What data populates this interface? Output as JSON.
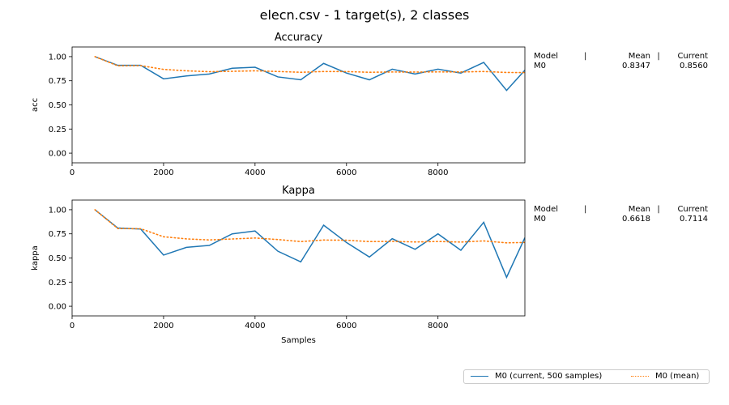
{
  "title": "elecn.csv - 1 target(s), 2 classes",
  "colors": {
    "current": "#1f77b4",
    "mean": "#ff7f0e",
    "axis": "#000000"
  },
  "legend": {
    "current_label": "M0  (current, 500 samples)",
    "mean_label": "M0 (mean)"
  },
  "chart_data": [
    {
      "type": "line",
      "title": "Accuracy",
      "xlabel": "",
      "ylabel": "acc",
      "xlim": [
        0,
        9900
      ],
      "ylim": [
        -0.1,
        1.1
      ],
      "x_ticks": [
        "0",
        "2000",
        "4000",
        "6000",
        "8000"
      ],
      "y_ticks": [
        "0.00",
        "0.25",
        "0.50",
        "0.75",
        "1.00"
      ],
      "x": [
        500,
        1000,
        1500,
        2000,
        2500,
        3000,
        3500,
        4000,
        4500,
        5000,
        5500,
        6000,
        6500,
        7000,
        7500,
        8000,
        8500,
        9000,
        9500,
        9900
      ],
      "series": [
        {
          "name": "M0  (current, 500 samples)",
          "style": "solid",
          "values": [
            1.0,
            0.91,
            0.91,
            0.77,
            0.8,
            0.82,
            0.88,
            0.89,
            0.79,
            0.76,
            0.93,
            0.83,
            0.76,
            0.87,
            0.82,
            0.87,
            0.83,
            0.94,
            0.65,
            0.86
          ]
        },
        {
          "name": "M0 (mean)",
          "style": "dotted",
          "values": [
            1.0,
            0.905,
            0.907,
            0.868,
            0.853,
            0.844,
            0.848,
            0.853,
            0.846,
            0.838,
            0.846,
            0.845,
            0.838,
            0.841,
            0.84,
            0.842,
            0.841,
            0.846,
            0.836,
            0.835
          ]
        }
      ],
      "stats_table": {
        "header": [
          "Model",
          "|",
          "Mean",
          "|",
          "Current"
        ],
        "row": [
          "M0",
          "",
          "0.8347",
          "",
          "0.8560"
        ]
      }
    },
    {
      "type": "line",
      "title": "Kappa",
      "xlabel": "Samples",
      "ylabel": "kappa",
      "xlim": [
        0,
        9900
      ],
      "ylim": [
        -0.1,
        1.1
      ],
      "x_ticks": [
        "0",
        "2000",
        "4000",
        "6000",
        "8000"
      ],
      "y_ticks": [
        "0.00",
        "0.25",
        "0.50",
        "0.75",
        "1.00"
      ],
      "x": [
        500,
        1000,
        1500,
        2000,
        2500,
        3000,
        3500,
        4000,
        4500,
        5000,
        5500,
        6000,
        6500,
        7000,
        7500,
        8000,
        8500,
        9000,
        9500,
        9900
      ],
      "series": [
        {
          "name": "M0  (current, 500 samples)",
          "style": "solid",
          "values": [
            1.0,
            0.81,
            0.8,
            0.53,
            0.61,
            0.63,
            0.75,
            0.78,
            0.57,
            0.46,
            0.84,
            0.66,
            0.51,
            0.7,
            0.59,
            0.75,
            0.58,
            0.87,
            0.3,
            0.71
          ]
        },
        {
          "name": "M0 (mean)",
          "style": "dotted",
          "values": [
            1.0,
            0.805,
            0.803,
            0.72,
            0.698,
            0.687,
            0.697,
            0.707,
            0.691,
            0.67,
            0.686,
            0.684,
            0.67,
            0.672,
            0.666,
            0.671,
            0.665,
            0.677,
            0.657,
            0.661
          ]
        }
      ],
      "stats_table": {
        "header": [
          "Model",
          "|",
          "Mean",
          "|",
          "Current"
        ],
        "row": [
          "M0",
          "",
          "0.6618",
          "",
          "0.7114"
        ]
      }
    }
  ]
}
